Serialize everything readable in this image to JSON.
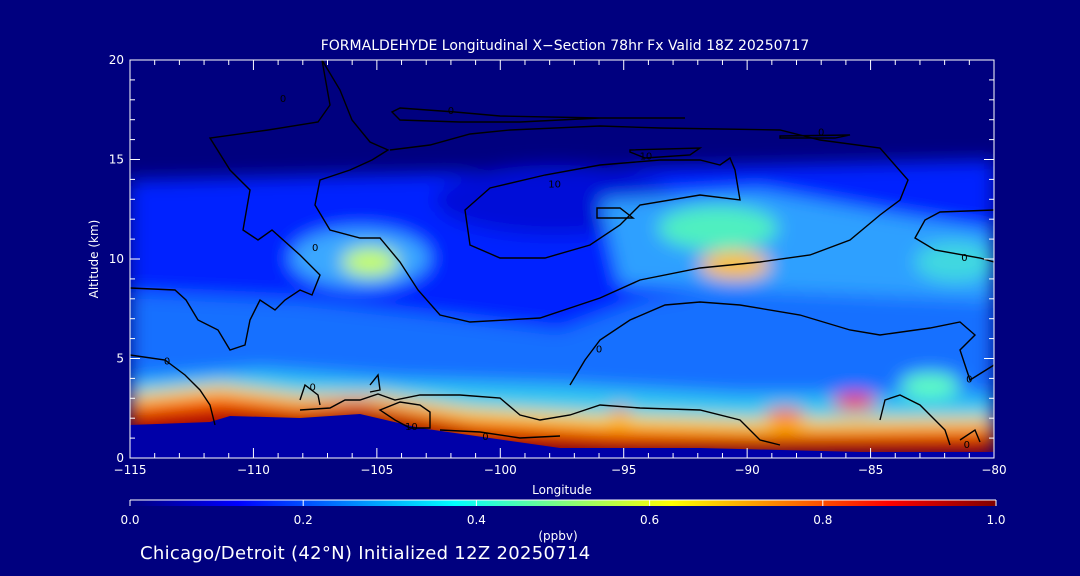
{
  "colors": {
    "background": "#00007f",
    "axes": "#ffffff",
    "contour": "#000000",
    "terrain": "#0000a8"
  },
  "chart_data": {
    "type": "heatmap",
    "title": "FORMALDEHYDE Longitudinal X−Section 78hr  Fx Valid 18Z 20250717",
    "xlabel": "Longitude",
    "ylabel": "Altitude (km)",
    "xlim": [
      -115,
      -80
    ],
    "ylim": [
      0,
      20
    ],
    "xticks": [
      -115,
      -110,
      -105,
      -100,
      -95,
      -90,
      -85,
      -80
    ],
    "xtick_labels": [
      "−115",
      "−110",
      "−105",
      "−100",
      "−95",
      "−90",
      "−85",
      "−80"
    ],
    "yticks": [
      0,
      5,
      10,
      15,
      20
    ],
    "ytick_labels": [
      "0",
      "5",
      "10",
      "15",
      "20"
    ],
    "colorbar": {
      "label": "(ppbv)",
      "min": 0.0,
      "max": 1.0,
      "ticks": [
        0.0,
        0.2,
        0.4,
        0.6,
        0.8,
        1.0
      ],
      "tick_labels": [
        "0.0",
        "0.2",
        "0.4",
        "0.6",
        "0.8",
        "1.0"
      ]
    },
    "contour_labels": [
      {
        "text": "0",
        "lon": -108.8,
        "alt": 18.1
      },
      {
        "text": "0",
        "lon": -102.0,
        "alt": 17.5
      },
      {
        "text": "0",
        "lon": -87.0,
        "alt": 16.4
      },
      {
        "text": "10",
        "lon": -94.1,
        "alt": 15.2
      },
      {
        "text": "10",
        "lon": -97.8,
        "alt": 13.8
      },
      {
        "text": "0",
        "lon": -107.5,
        "alt": 10.6
      },
      {
        "text": "0",
        "lon": -81.2,
        "alt": 10.1
      },
      {
        "text": "0",
        "lon": -96.0,
        "alt": 5.5
      },
      {
        "text": "0",
        "lon": -113.5,
        "alt": 4.9
      },
      {
        "text": "0",
        "lon": -107.6,
        "alt": 3.6
      },
      {
        "text": "0",
        "lon": -81.0,
        "alt": 4.0
      },
      {
        "text": "10",
        "lon": -103.6,
        "alt": 1.6
      },
      {
        "text": "0",
        "lon": -100.6,
        "alt": 1.1
      },
      {
        "text": "0",
        "lon": -81.1,
        "alt": 0.7
      }
    ]
  },
  "footer": {
    "caption": "Chicago/Detroit (42°N) Initialized 12Z 20250714"
  }
}
